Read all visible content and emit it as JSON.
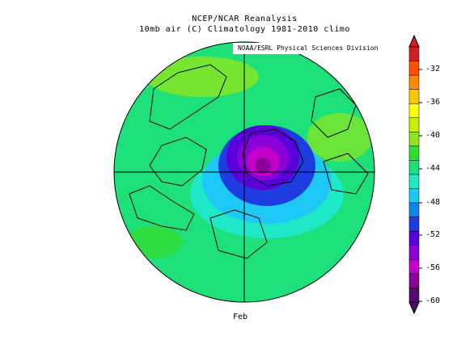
{
  "title_line1": "NCEP/NCAR Reanalysis",
  "title_line2": "10mb air (C) Climatology 1981-2010 climo",
  "credit": "NOAA/ESRL Physical Sciences Division",
  "month": "Feb",
  "colorbar": {
    "colors": [
      "#550a70",
      "#8b009b",
      "#c400c8",
      "#8c00d8",
      "#5a00d8",
      "#1e3ce0",
      "#1482e6",
      "#1ec8f5",
      "#1ee8c8",
      "#1ee07a",
      "#32dc32",
      "#8ce61e",
      "#c8f000",
      "#ffff00",
      "#ffc800",
      "#ff8c00",
      "#ff5000",
      "#d21e1e"
    ],
    "tick_labels": [
      "-60",
      "-56",
      "-52",
      "-48",
      "-44",
      "-40",
      "-36",
      "-32"
    ]
  },
  "map_data": {
    "type": "polar-stereographic-contour",
    "field": "air temperature",
    "units": "C",
    "level": "10mb",
    "range": [
      -60,
      -30
    ]
  }
}
